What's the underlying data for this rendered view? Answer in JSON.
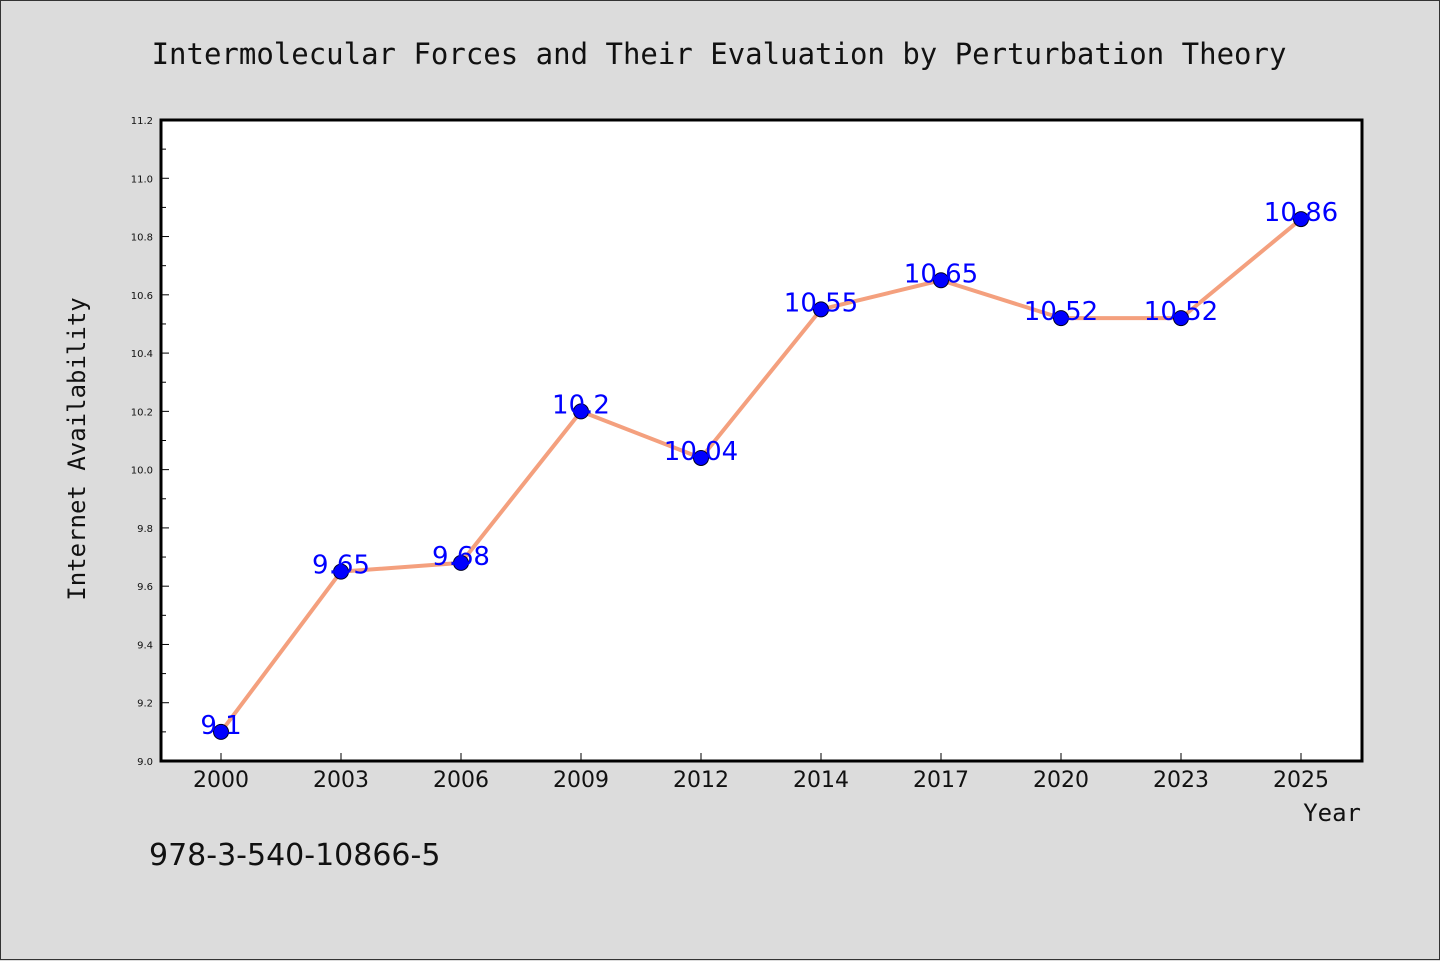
{
  "chart_data": {
    "type": "line",
    "title": "Intermolecular Forces and Their Evaluation by Perturbation Theory",
    "xlabel": "Year",
    "ylabel": "Internet Availability",
    "categories": [
      "2000",
      "2003",
      "2006",
      "2009",
      "2012",
      "2014",
      "2017",
      "2020",
      "2023",
      "2025"
    ],
    "series": [
      {
        "values": [
          9.1,
          9.65,
          9.68,
          10.2,
          10.04,
          10.55,
          10.65,
          10.52,
          10.52,
          10.86
        ]
      }
    ],
    "data_labels": [
      "9.1",
      "9.65",
      "9.68",
      "10.2",
      "10.04",
      "10.55",
      "10.65",
      "10.52",
      "10.52",
      "10.86"
    ],
    "ylim": [
      9.0,
      11.2
    ],
    "yticks": [
      "9.0",
      "9.2",
      "9.4",
      "9.6",
      "9.8",
      "10.0",
      "10.2",
      "10.4",
      "10.6",
      "10.8",
      "11.0",
      "11.2"
    ],
    "grid": false,
    "legend": "none",
    "line_color": "#f4a07e",
    "marker_color": "#0000ff",
    "label_color": "#0000ff"
  },
  "footer": {
    "isbn": "978-3-540-10866-5"
  }
}
